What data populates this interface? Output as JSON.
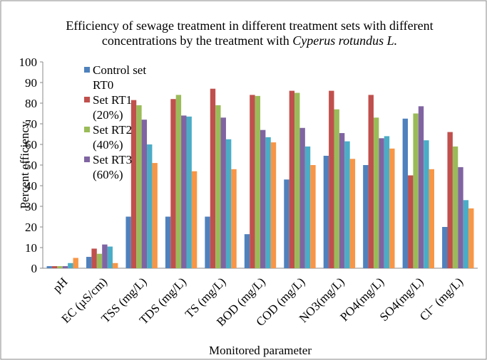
{
  "chart_data": {
    "type": "bar",
    "title": "Efficiency of sewage treatment in different treatment sets with different concentrations by the treatment with",
    "title_species": "Cyperus rotundus L.",
    "xlabel": "Monitored parameter",
    "ylabel": "Percent efficiency",
    "categories": [
      "pH",
      "EC (µS/cm)",
      "TSS (mg/L)",
      "TDS (mg/L)",
      "TS (mg/L)",
      "BOD (mg/L)",
      "COD (mg/L)",
      "NO3(mg/L)",
      "PO4(mg/L)",
      "SO4(mg/L)",
      "Cl⁻  (mg/L)"
    ],
    "series": [
      {
        "name": "Control set RT0",
        "color": "#4f81bd",
        "values": [
          1,
          5.5,
          25,
          25,
          25,
          16.5,
          43,
          54.5,
          50,
          72.5,
          20
        ]
      },
      {
        "name": "Set RT1 (20%)",
        "color": "#c0504d",
        "values": [
          1,
          9.5,
          81.5,
          82,
          87,
          84,
          86,
          86,
          84,
          45,
          66
        ]
      },
      {
        "name": "Set RT2 (40%)",
        "color": "#9bbb59",
        "values": [
          1,
          7,
          79,
          84,
          79,
          83.5,
          85,
          77,
          73,
          75,
          59
        ]
      },
      {
        "name": "Set RT3 (60%)",
        "color": "#8064a2",
        "values": [
          1,
          11.5,
          72,
          74,
          73,
          67,
          68,
          65.5,
          63,
          78.5,
          49
        ]
      },
      {
        "color": "#4bacc6",
        "values": [
          2.5,
          10.5,
          60,
          73.5,
          62.5,
          63.5,
          59,
          61.5,
          64,
          62,
          33
        ]
      },
      {
        "color": "#f79646",
        "values": [
          5,
          2.5,
          51,
          47,
          48,
          61,
          50,
          53,
          58,
          48,
          29
        ]
      }
    ],
    "ylim": [
      0,
      100
    ],
    "yticks": [
      0,
      10,
      20,
      30,
      40,
      50,
      60,
      70,
      80,
      90,
      100
    ],
    "grid": false
  }
}
